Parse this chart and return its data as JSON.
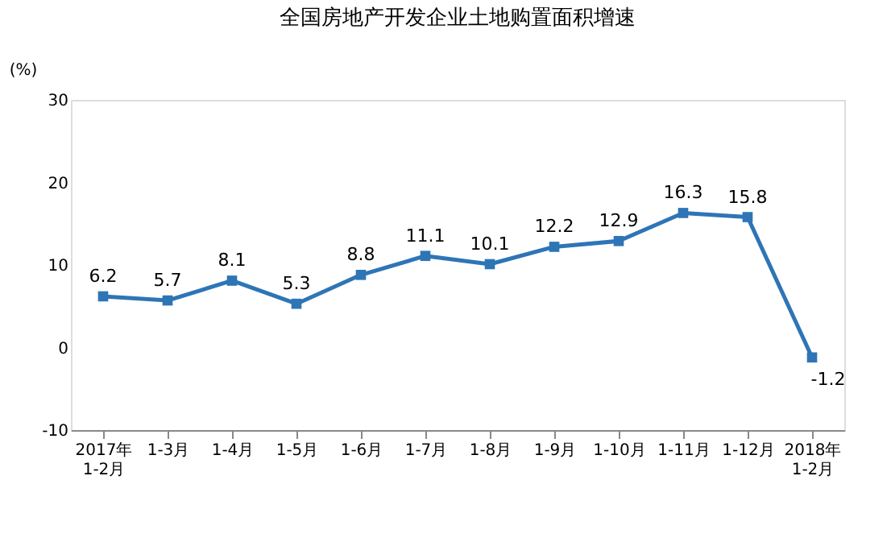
{
  "chart_data": {
    "type": "line",
    "title": "全国房地产开发企业土地购置面积增速",
    "ylabel": "(%)",
    "categories": [
      "2017年\n1-2月",
      "1-3月",
      "1-4月",
      "1-5月",
      "1-6月",
      "1-7月",
      "1-8月",
      "1-9月",
      "1-10月",
      "1-11月",
      "1-12月",
      "2018年\n1-2月"
    ],
    "series": [
      {
        "color": "#2e75b6",
        "values": [
          6.2,
          5.7,
          8.1,
          5.3,
          8.8,
          11.1,
          10.1,
          12.2,
          12.9,
          16.3,
          15.8,
          -1.2
        ]
      }
    ],
    "ylim": [
      -10,
      30
    ],
    "yticks": [
      -10,
      0,
      10,
      20,
      30
    ],
    "marker": "square",
    "data_labels": true,
    "grid": false
  }
}
